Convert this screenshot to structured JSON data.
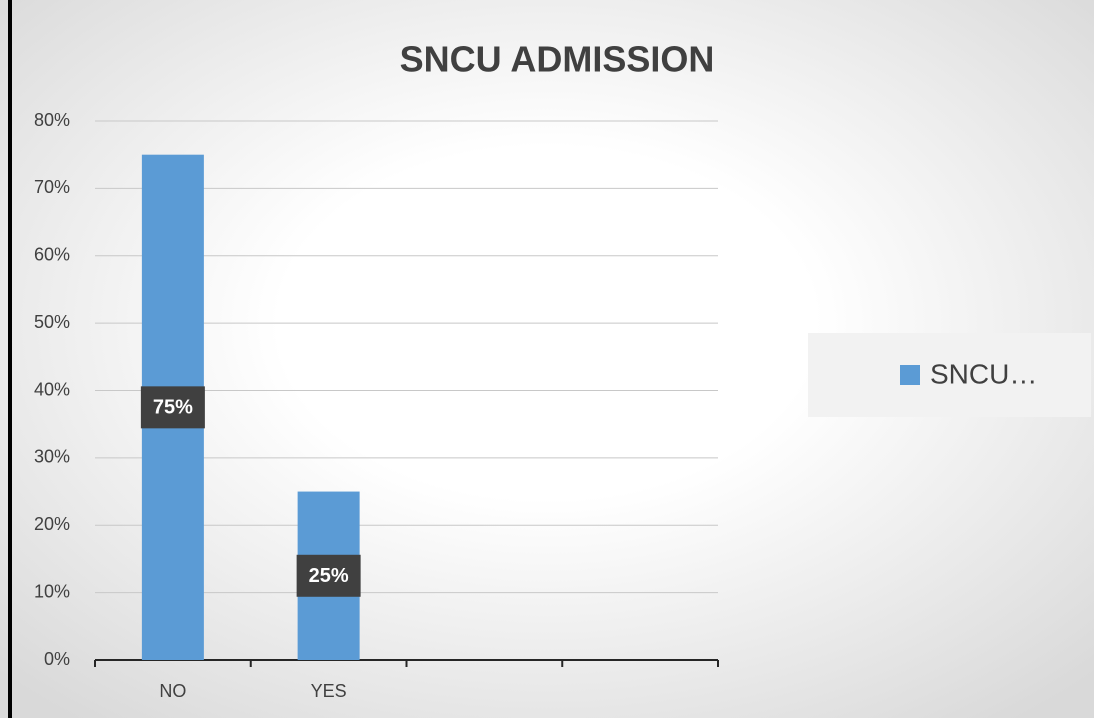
{
  "chart_data": {
    "type": "bar",
    "title": "SNCU  ADMISSION",
    "categories": [
      "NO",
      "YES",
      null,
      null
    ],
    "series": [
      {
        "name": "SNCU…",
        "color": "#5b9bd5",
        "values": [
          75,
          25,
          null,
          null
        ],
        "value_labels": [
          "75%",
          "25%",
          null,
          null
        ]
      }
    ],
    "ylim": [
      0,
      80
    ],
    "yticks": [
      {
        "value": 0,
        "label": "0%"
      },
      {
        "value": 10,
        "label": "10%"
      },
      {
        "value": 20,
        "label": "20%"
      },
      {
        "value": 30,
        "label": "30%"
      },
      {
        "value": 40,
        "label": "40%"
      },
      {
        "value": 50,
        "label": "50%"
      },
      {
        "value": 60,
        "label": "60%"
      },
      {
        "value": 70,
        "label": "70%"
      },
      {
        "value": 80,
        "label": "80%"
      }
    ],
    "grid": true,
    "legend": "right"
  }
}
